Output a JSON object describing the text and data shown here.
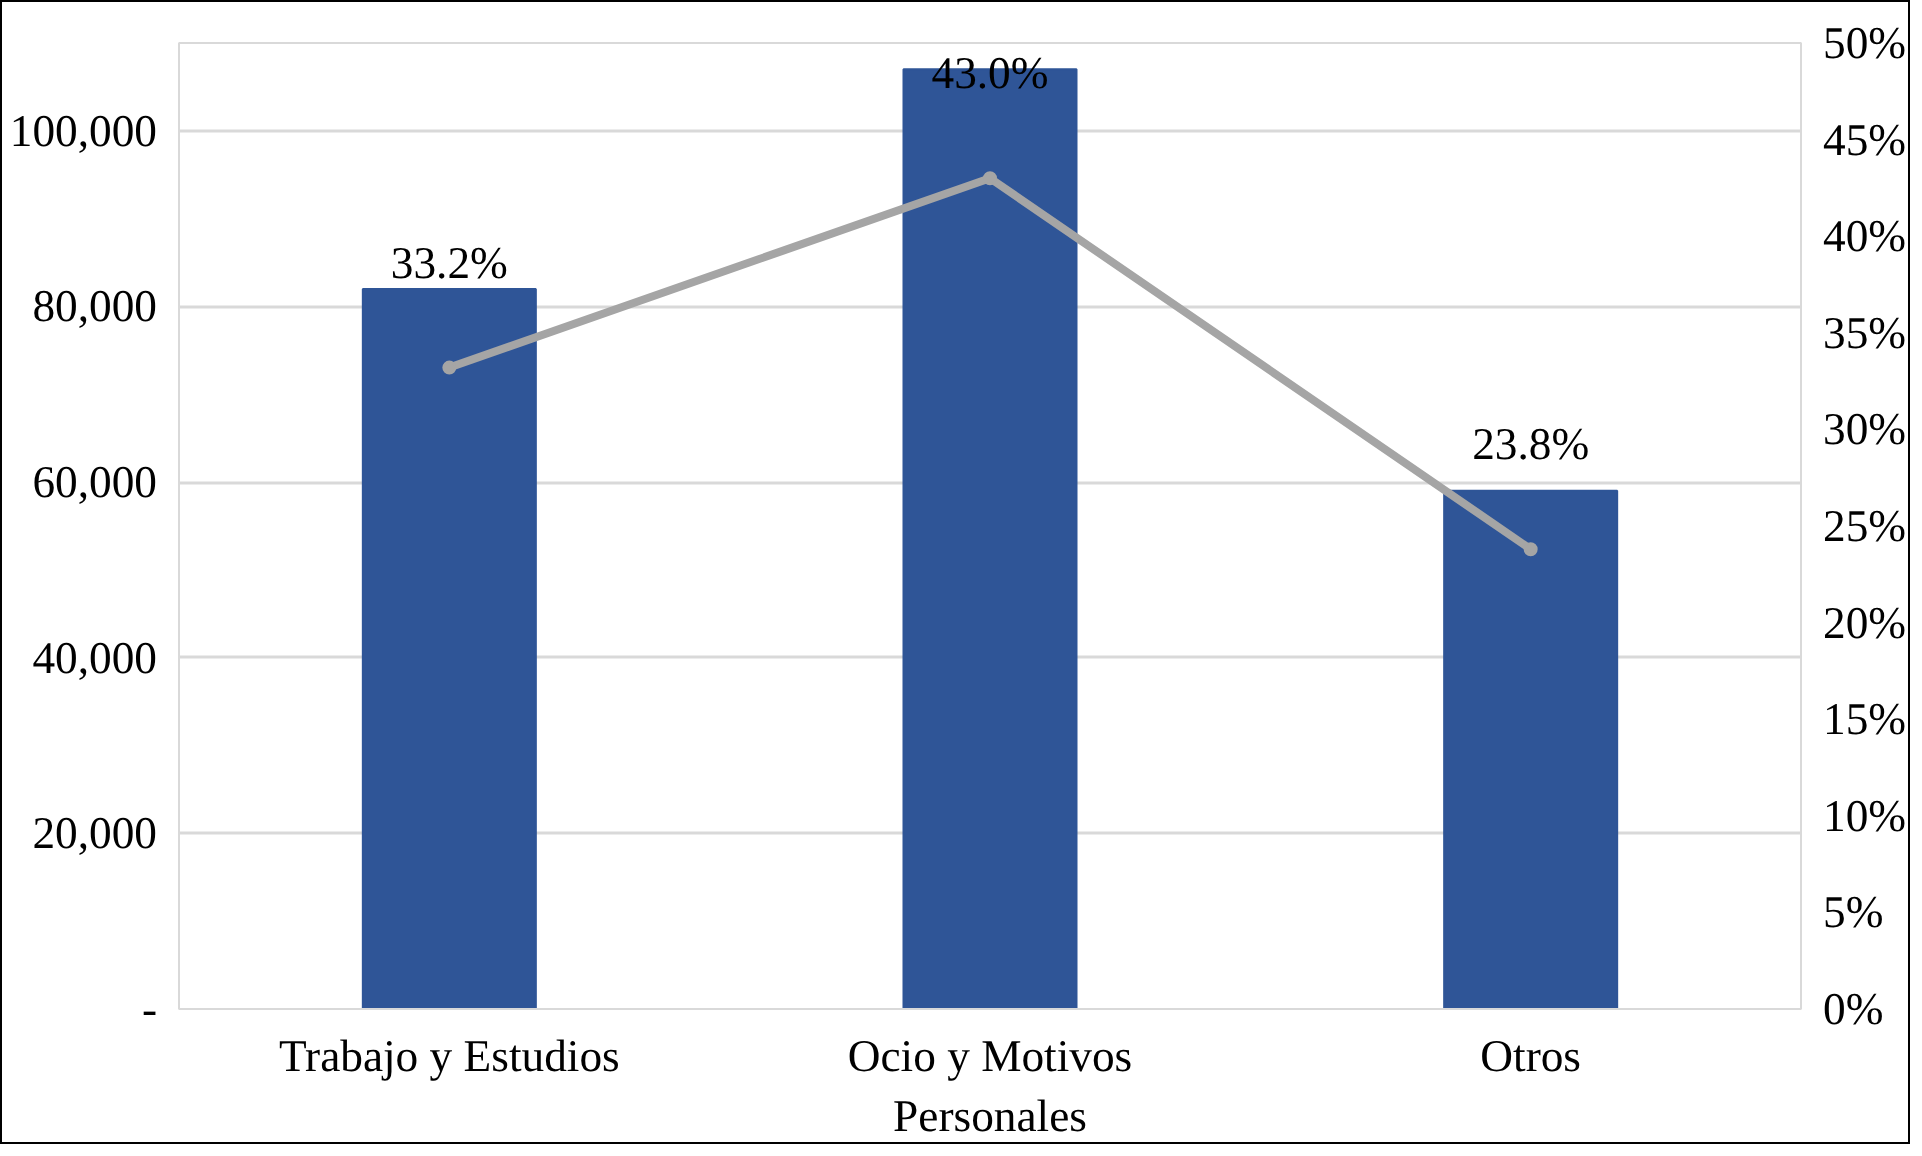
{
  "chart_data": {
    "type": "bar",
    "categories": [
      "Trabajo y Estudios",
      "Ocio y Motivos\nPersonales",
      "Otros"
    ],
    "series": [
      {
        "color": "#2f5597",
        "values": [
          82000,
          107000,
          59000
        ]
      },
      {
        "type": "line",
        "axis": "y2",
        "color": "#a5a5a5",
        "values": [
          33.2,
          43.0,
          23.8
        ],
        "value_labels": [
          "33.2%",
          "43.0%",
          "23.8%"
        ]
      }
    ],
    "ylim": [
      0,
      110000
    ],
    "yticks": [
      {
        "value": 0,
        "label": "-"
      },
      {
        "value": 20000,
        "label": "20,000"
      },
      {
        "value": 40000,
        "label": "40,000"
      },
      {
        "value": 60000,
        "label": "60,000"
      },
      {
        "value": 80000,
        "label": "80,000"
      },
      {
        "value": 100000,
        "label": "100,000"
      }
    ],
    "y2lim": [
      0,
      50
    ],
    "y2ticks": [
      {
        "value": 0,
        "label": "0%"
      },
      {
        "value": 5,
        "label": "5%"
      },
      {
        "value": 10,
        "label": "10%"
      },
      {
        "value": 15,
        "label": "15%"
      },
      {
        "value": 20,
        "label": "20%"
      },
      {
        "value": 25,
        "label": "25%"
      },
      {
        "value": 30,
        "label": "30%"
      },
      {
        "value": 35,
        "label": "35%"
      },
      {
        "value": 40,
        "label": "40%"
      },
      {
        "value": 45,
        "label": "45%"
      },
      {
        "value": 50,
        "label": "50%"
      }
    ],
    "grid": "y",
    "marker": "circle"
  }
}
